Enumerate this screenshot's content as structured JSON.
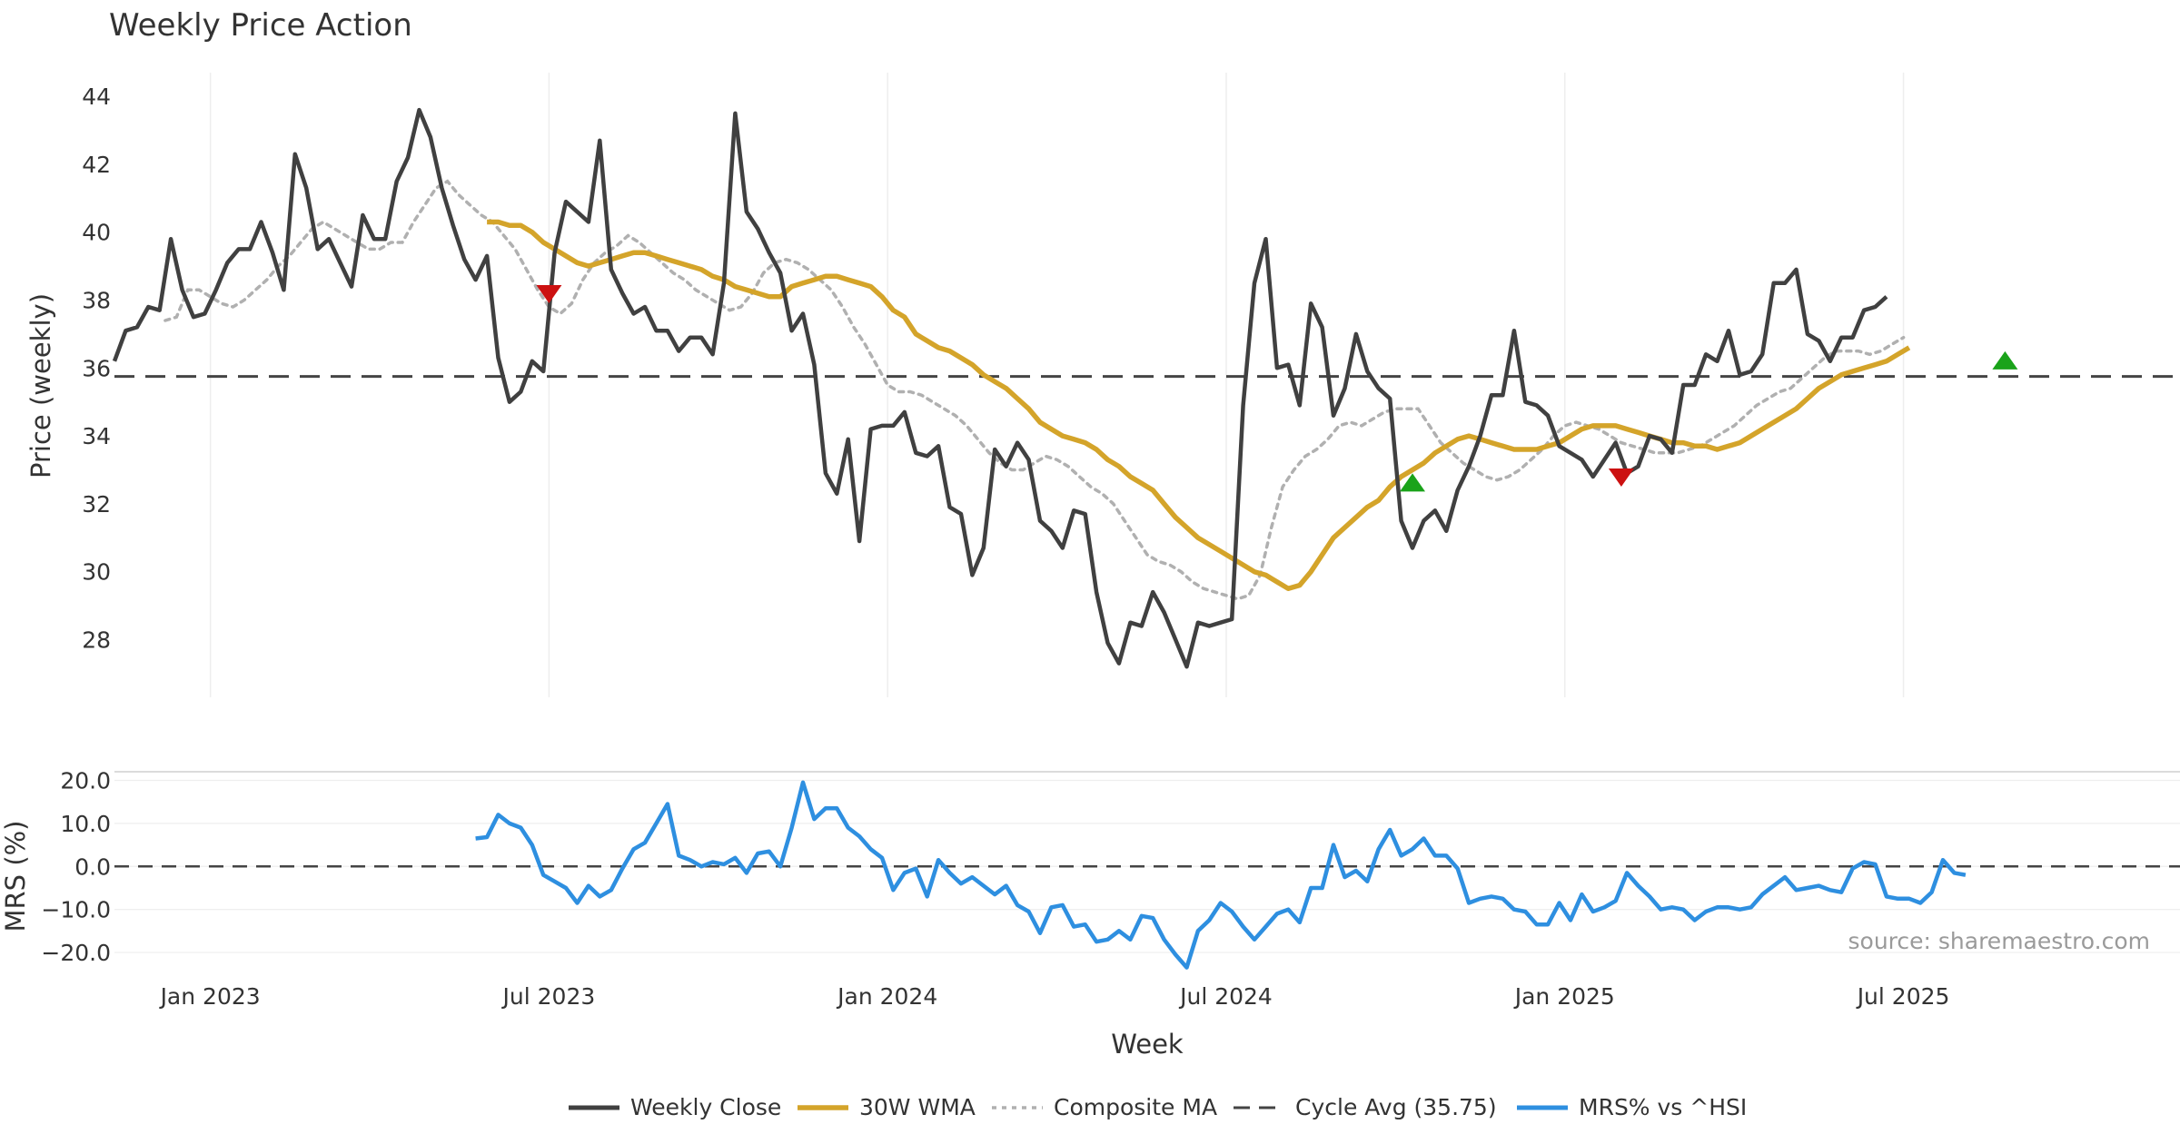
{
  "colors": {
    "close": "#404040",
    "wma": "#d4a42a",
    "composite": "#b0b0b0",
    "cycle": "#444444",
    "mrs": "#2e8fe0",
    "buy": "#1aa31a",
    "sell": "#cc1111",
    "grid": "#eeeeee"
  },
  "source": "source: sharemaestro.com",
  "chart_data": [
    {
      "type": "line",
      "title": "Weekly Price Action",
      "ylabel": "Price (weekly)",
      "xlabel": "Week",
      "ylim": [
        26.3,
        44.7
      ],
      "yticks": [
        28,
        30,
        32,
        34,
        36,
        38,
        40,
        42,
        44
      ],
      "x_range": [
        1.3,
        37.9
      ],
      "x_months": {
        "ticks": [
          3,
          9,
          15,
          21,
          27,
          33
        ],
        "labels": [
          "Jan 2023",
          "Jul 2023",
          "Jan 2024",
          "Jul 2024",
          "Jan 2025",
          "Jul 2025"
        ]
      },
      "cycle_avg": 35.75,
      "series": [
        {
          "name": "Weekly Close",
          "x_start": 1.3,
          "x_step": 0.2,
          "values": [
            36.2,
            37.1,
            37.2,
            37.8,
            37.7,
            39.8,
            38.3,
            37.5,
            37.6,
            38.3,
            39.1,
            39.5,
            39.5,
            40.3,
            39.4,
            38.3,
            42.3,
            41.3,
            39.5,
            39.8,
            39.1,
            38.4,
            40.5,
            39.8,
            39.8,
            41.5,
            42.2,
            43.6,
            42.8,
            41.3,
            40.2,
            39.2,
            38.6,
            39.3,
            36.3,
            35.0,
            35.3,
            36.2,
            35.9,
            39.4,
            40.9,
            40.6,
            40.3,
            42.7,
            38.9,
            38.2,
            37.6,
            37.8,
            37.1,
            37.1,
            36.5,
            36.9,
            36.9,
            36.4,
            38.5,
            43.5,
            40.6,
            40.1,
            39.4,
            38.8,
            37.1,
            37.6,
            36.1,
            32.9,
            32.3,
            33.9,
            30.9,
            34.2,
            34.3,
            34.3,
            34.7,
            33.5,
            33.4,
            33.7,
            31.9,
            31.7,
            29.9,
            30.7,
            33.6,
            33.1,
            33.8,
            33.3,
            31.5,
            31.2,
            30.7,
            31.8,
            31.7,
            29.4,
            27.9,
            27.3,
            28.5,
            28.4,
            29.4,
            28.8,
            28.0,
            27.2,
            28.5,
            28.4,
            28.5,
            28.6,
            34.9,
            38.5,
            39.8,
            36.0,
            36.1,
            34.9,
            37.9,
            37.2,
            34.6,
            35.4,
            37.0,
            35.9,
            35.4,
            35.1,
            31.5,
            30.7,
            31.5,
            31.8,
            31.2,
            32.4,
            33.1,
            34.0,
            35.2,
            35.2,
            37.1,
            35.0,
            34.9,
            34.6,
            33.7,
            33.5,
            33.3,
            32.8,
            33.3,
            33.8,
            32.9,
            33.1,
            34.0,
            33.9,
            33.5,
            35.5,
            35.5,
            36.4,
            36.2,
            37.1,
            35.8,
            35.9,
            36.4,
            38.5,
            38.5,
            38.9,
            37.0,
            36.8,
            36.2,
            36.9,
            36.9,
            37.7,
            37.8,
            38.1
          ]
        },
        {
          "name": "30W WMA",
          "x_start": 7.9,
          "x_step": 0.2,
          "values": [
            40.3,
            40.3,
            40.2,
            40.2,
            40.0,
            39.7,
            39.5,
            39.3,
            39.1,
            39.0,
            39.1,
            39.2,
            39.3,
            39.4,
            39.4,
            39.3,
            39.2,
            39.1,
            39.0,
            38.9,
            38.7,
            38.6,
            38.4,
            38.3,
            38.2,
            38.1,
            38.1,
            38.4,
            38.5,
            38.6,
            38.7,
            38.7,
            38.6,
            38.5,
            38.4,
            38.1,
            37.7,
            37.5,
            37.0,
            36.8,
            36.6,
            36.5,
            36.3,
            36.1,
            35.8,
            35.6,
            35.4,
            35.1,
            34.8,
            34.4,
            34.2,
            34.0,
            33.9,
            33.8,
            33.6,
            33.3,
            33.1,
            32.8,
            32.6,
            32.4,
            32.0,
            31.6,
            31.3,
            31.0,
            30.8,
            30.6,
            30.4,
            30.2,
            30.0,
            29.9,
            29.7,
            29.5,
            29.6,
            30.0,
            30.5,
            31.0,
            31.3,
            31.6,
            31.9,
            32.1,
            32.5,
            32.8,
            33.0,
            33.2,
            33.5,
            33.7,
            33.9,
            34.0,
            33.9,
            33.8,
            33.7,
            33.6,
            33.6,
            33.6,
            33.7,
            33.8,
            34.0,
            34.2,
            34.3,
            34.3,
            34.3,
            34.2,
            34.1,
            34.0,
            33.9,
            33.8,
            33.8,
            33.7,
            33.7,
            33.6,
            33.7,
            33.8,
            34.0,
            34.2,
            34.4,
            34.6,
            34.8,
            35.1,
            35.4,
            35.6,
            35.8,
            35.9,
            36.0,
            36.1,
            36.2,
            36.4,
            36.6
          ]
        },
        {
          "name": "Composite MA",
          "x_start": 2.2,
          "x_step": 0.2,
          "values": [
            37.4,
            37.5,
            38.3,
            38.3,
            38.1,
            37.9,
            37.8,
            38.0,
            38.3,
            38.6,
            39.0,
            39.3,
            39.7,
            40.1,
            40.3,
            40.1,
            39.9,
            39.7,
            39.5,
            39.5,
            39.7,
            39.7,
            40.3,
            40.8,
            41.3,
            41.5,
            41.1,
            40.8,
            40.5,
            40.3,
            39.9,
            39.5,
            38.9,
            38.3,
            37.8,
            37.6,
            37.9,
            38.6,
            39.1,
            39.4,
            39.6,
            39.9,
            39.7,
            39.4,
            39.1,
            38.8,
            38.6,
            38.3,
            38.1,
            37.9,
            37.7,
            37.8,
            38.2,
            38.8,
            39.1,
            39.2,
            39.1,
            38.9,
            38.6,
            38.3,
            37.8,
            37.2,
            36.7,
            36.1,
            35.5,
            35.3,
            35.3,
            35.2,
            35.0,
            34.8,
            34.6,
            34.3,
            33.9,
            33.5,
            33.2,
            33.0,
            33.0,
            33.2,
            33.4,
            33.3,
            33.1,
            32.8,
            32.5,
            32.3,
            32.0,
            31.5,
            31.0,
            30.5,
            30.3,
            30.2,
            30.0,
            29.7,
            29.5,
            29.4,
            29.3,
            29.2,
            29.3,
            29.9,
            31.3,
            32.5,
            33.0,
            33.4,
            33.6,
            33.9,
            34.3,
            34.4,
            34.3,
            34.5,
            34.7,
            34.8,
            34.8,
            34.8,
            34.3,
            33.8,
            33.5,
            33.2,
            33.0,
            32.8,
            32.7,
            32.8,
            33.0,
            33.3,
            33.6,
            34.0,
            34.3,
            34.4,
            34.3,
            34.2,
            34.0,
            33.8,
            33.7,
            33.6,
            33.5,
            33.5,
            33.5,
            33.6,
            33.7,
            33.9,
            34.1,
            34.3,
            34.6,
            34.9,
            35.1,
            35.3,
            35.4,
            35.7,
            36.0,
            36.3,
            36.5,
            36.5,
            36.5,
            36.4,
            36.5,
            36.7,
            36.9
          ]
        }
      ],
      "signals": [
        {
          "type": "sell",
          "x": 9.0,
          "y": 38.2
        },
        {
          "type": "buy",
          "x": 24.3,
          "y": 32.6
        },
        {
          "type": "sell",
          "x": 28.0,
          "y": 32.8
        },
        {
          "type": "buy",
          "x": 34.8,
          "y": 36.2
        }
      ]
    },
    {
      "type": "line",
      "ylabel": "MRS (%)",
      "ylim": [
        -24,
        22
      ],
      "yticks": [
        20.0,
        10.0,
        0.0,
        -10.0,
        -20.0
      ],
      "ytick_labels": [
        "20.0",
        "10.0",
        "0.0",
        "−10.0",
        "−20.0"
      ],
      "reference": 0,
      "series": [
        {
          "name": "MRS% vs ^HSI",
          "x_start": 7.7,
          "x_step": 0.2,
          "values": [
            6.5,
            6.8,
            12.0,
            10.0,
            9.0,
            5.0,
            -2.0,
            -3.5,
            -5.0,
            -8.5,
            -4.5,
            -7.0,
            -5.5,
            -0.5,
            4.0,
            5.5,
            10.0,
            14.5,
            2.5,
            1.5,
            0.0,
            1.0,
            0.5,
            2.0,
            -1.5,
            3.0,
            3.5,
            0.0,
            9.0,
            19.5,
            11.0,
            13.5,
            13.5,
            9.0,
            7.0,
            4.0,
            2.0,
            -5.5,
            -1.5,
            -0.5,
            -7.0,
            1.5,
            -1.5,
            -4.0,
            -2.5,
            -4.5,
            -6.5,
            -4.5,
            -9.0,
            -10.5,
            -15.5,
            -9.5,
            -9.0,
            -14.0,
            -13.5,
            -17.5,
            -17.0,
            -15.0,
            -17.0,
            -11.5,
            -12.0,
            -17.0,
            -20.5,
            -23.5,
            -15.0,
            -12.5,
            -8.5,
            -10.5,
            -14.0,
            -17.0,
            -14.0,
            -11.0,
            -10.0,
            -13.0,
            -5.0,
            -5.0,
            5.0,
            -2.5,
            -1.0,
            -3.5,
            4.0,
            8.5,
            2.5,
            4.0,
            6.5,
            2.5,
            2.5,
            -0.5,
            -8.5,
            -7.5,
            -7.0,
            -7.5,
            -10.0,
            -10.5,
            -13.5,
            -13.5,
            -8.5,
            -12.5,
            -6.5,
            -10.5,
            -9.5,
            -8.0,
            -1.5,
            -4.5,
            -7.0,
            -10.0,
            -9.5,
            -10.0,
            -12.5,
            -10.5,
            -9.5,
            -9.5,
            -10.0,
            -9.5,
            -6.5,
            -4.5,
            -2.5,
            -5.5,
            -5.0,
            -4.5,
            -5.5,
            -6.0,
            -0.5,
            1.0,
            0.5,
            -7.0,
            -7.5,
            -7.5,
            -8.5,
            -6.0,
            1.5,
            -1.5,
            -2.0
          ]
        }
      ]
    }
  ],
  "legend": [
    {
      "label": "Weekly Close",
      "style": "close"
    },
    {
      "label": "30W WMA",
      "style": "wma"
    },
    {
      "label": "Composite MA",
      "style": "composite"
    },
    {
      "label": "Cycle Avg (35.75)",
      "style": "cycle"
    },
    {
      "label": "MRS% vs ^HSI",
      "style": "mrs"
    }
  ]
}
